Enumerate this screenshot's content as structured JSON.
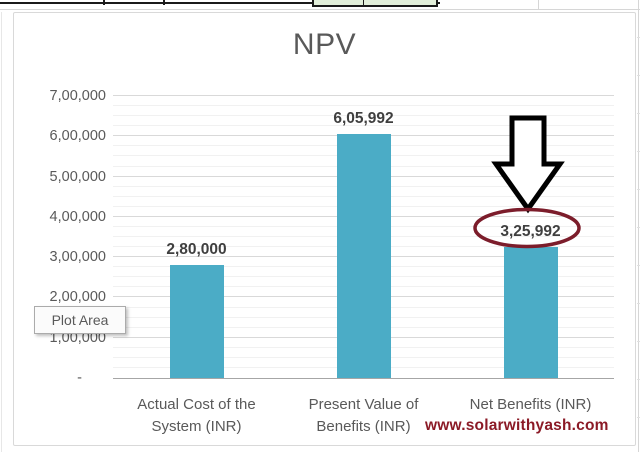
{
  "spreadsheet": {
    "green_cell_color": "#E2EFDA"
  },
  "tooltip": {
    "label": "Plot Area"
  },
  "watermark": {
    "text": "www.solarwithyash.com",
    "color": "#8B1A26"
  },
  "chart_data": {
    "type": "bar",
    "title": "NPV",
    "categories": [
      "Actual Cost of the System (INR)",
      "Present Value of Benefits (INR)",
      "Net Benefits (INR)"
    ],
    "values": [
      280000,
      605992,
      325992
    ],
    "data_labels": [
      "2,80,000",
      "6,05,992",
      "3,25,992"
    ],
    "ylim": [
      0,
      700000
    ],
    "y_major_unit": 100000,
    "y_minor_unit": 25000,
    "y_tick_labels": [
      "7,00,000",
      "6,00,000",
      "5,00,000",
      "4,00,000",
      "3,00,000",
      "2,00,000",
      "1,00,000",
      "-"
    ],
    "bar_color": "#4BACC6",
    "grid": true,
    "legend": "none",
    "annotations": [
      {
        "type": "block-arrow-down",
        "target_category": "Net Benefits (INR)",
        "color": "#000000"
      },
      {
        "type": "ellipse-highlight",
        "around_label": "3,25,992",
        "color": "#7C1D2B"
      }
    ]
  }
}
